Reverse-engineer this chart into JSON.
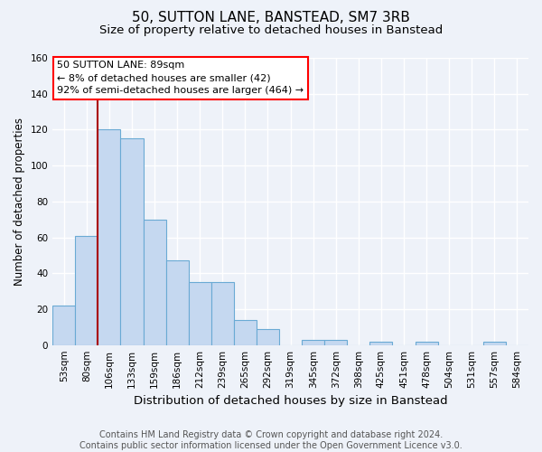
{
  "title1": "50, SUTTON LANE, BANSTEAD, SM7 3RB",
  "title2": "Size of property relative to detached houses in Banstead",
  "xlabel": "Distribution of detached houses by size in Banstead",
  "ylabel": "Number of detached properties",
  "categories": [
    "53sqm",
    "80sqm",
    "106sqm",
    "133sqm",
    "159sqm",
    "186sqm",
    "212sqm",
    "239sqm",
    "265sqm",
    "292sqm",
    "319sqm",
    "345sqm",
    "372sqm",
    "398sqm",
    "425sqm",
    "451sqm",
    "478sqm",
    "504sqm",
    "531sqm",
    "557sqm",
    "584sqm"
  ],
  "values": [
    22,
    61,
    120,
    115,
    70,
    47,
    35,
    35,
    14,
    9,
    0,
    3,
    3,
    0,
    2,
    0,
    2,
    0,
    0,
    2,
    0
  ],
  "bar_color": "#c5d8f0",
  "bar_edge_color": "#6aaad4",
  "annotation_text": "50 SUTTON LANE: 89sqm\n← 8% of detached houses are smaller (42)\n92% of semi-detached houses are larger (464) →",
  "annotation_box_color": "white",
  "annotation_box_edge_color": "red",
  "vline_color": "#aa0000",
  "vline_x": 1.5,
  "ylim": [
    0,
    160
  ],
  "yticks": [
    0,
    20,
    40,
    60,
    80,
    100,
    120,
    140,
    160
  ],
  "footer": "Contains HM Land Registry data © Crown copyright and database right 2024.\nContains public sector information licensed under the Open Government Licence v3.0.",
  "background_color": "#eef2f9",
  "grid_color": "white",
  "title1_fontsize": 11,
  "title2_fontsize": 9.5,
  "xlabel_fontsize": 9.5,
  "ylabel_fontsize": 8.5,
  "tick_fontsize": 7.5,
  "annotation_fontsize": 8,
  "footer_fontsize": 7
}
